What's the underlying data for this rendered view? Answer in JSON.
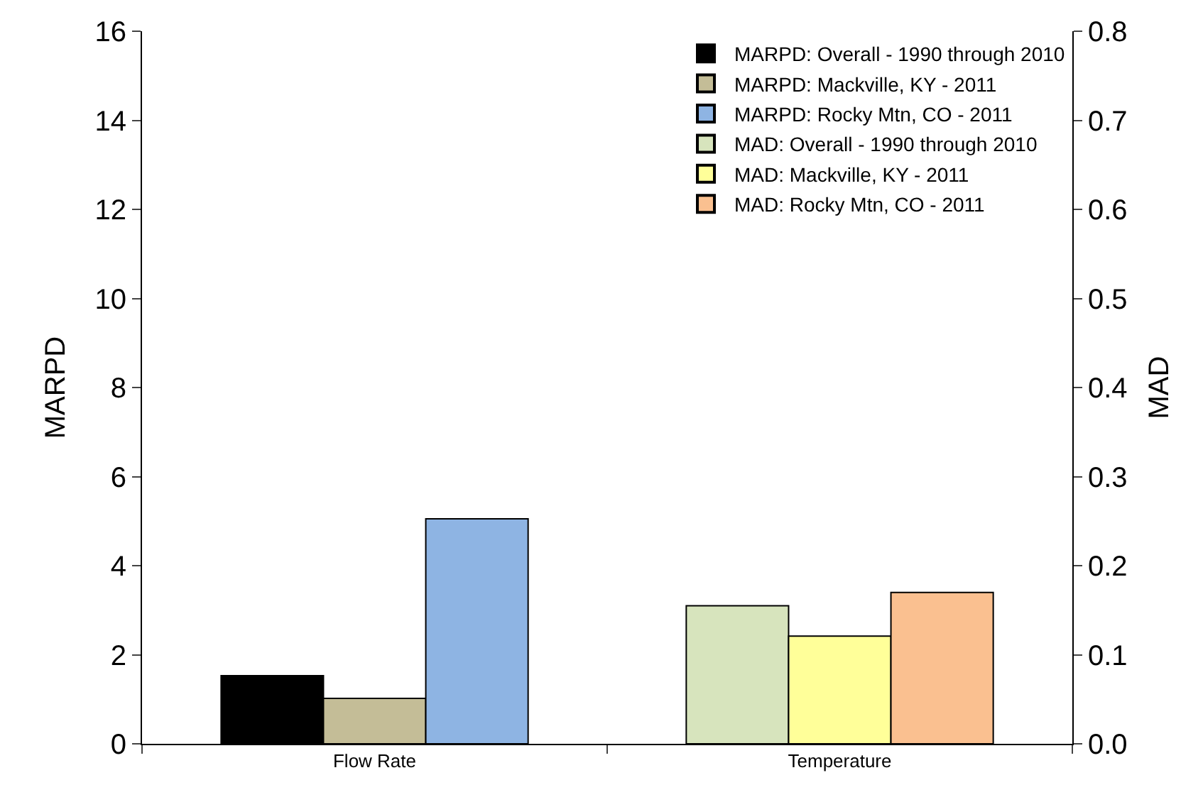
{
  "chart_data": {
    "type": "bar",
    "ylabel": "MARPD",
    "y2label": "MAD",
    "categories": [
      "Flow Rate",
      "Temperature"
    ],
    "series": [
      {
        "name": "MARPD: Overall - 1990 through 2010",
        "color": "#000000",
        "values": [
          1.53,
          null
        ]
      },
      {
        "name": "MARPD: Mackville, KY - 2011",
        "color": "#c4bd97",
        "values": [
          1.02,
          null
        ]
      },
      {
        "name": "MARPD: Rocky Mtn, CO - 2011",
        "color": "#8eb4e3",
        "values": [
          5.05,
          null
        ]
      },
      {
        "name": "MAD: Overall - 1990 through 2010",
        "color": "#d7e4bd",
        "values": [
          null,
          0.155
        ],
        "axis": "y2"
      },
      {
        "name": "MAD: Mackville, KY - 2011",
        "color": "#ffff99",
        "values": [
          null,
          0.121
        ],
        "axis": "y2"
      },
      {
        "name": "MAD: Rocky Mtn, CO - 2011",
        "color": "#fac090",
        "values": [
          null,
          0.17
        ],
        "axis": "y2"
      }
    ],
    "ylim": [
      0,
      16
    ],
    "yticks": [
      0,
      2,
      4,
      6,
      8,
      10,
      12,
      14,
      16
    ],
    "y2lim": [
      0,
      0.8
    ],
    "y2ticks": [
      {
        "value": 0,
        "label": "0.0"
      },
      {
        "value": 0.1,
        "label": "0.1"
      },
      {
        "value": 0.2,
        "label": "0.2"
      },
      {
        "value": 0.3,
        "label": "0.3"
      },
      {
        "value": 0.4,
        "label": "0.4"
      },
      {
        "value": 0.5,
        "label": "0.5"
      },
      {
        "value": 0.6,
        "label": "0.6"
      },
      {
        "value": 0.7,
        "label": "0.7"
      },
      {
        "value": 0.8,
        "label": "0.8"
      }
    ],
    "legend": "top right"
  }
}
